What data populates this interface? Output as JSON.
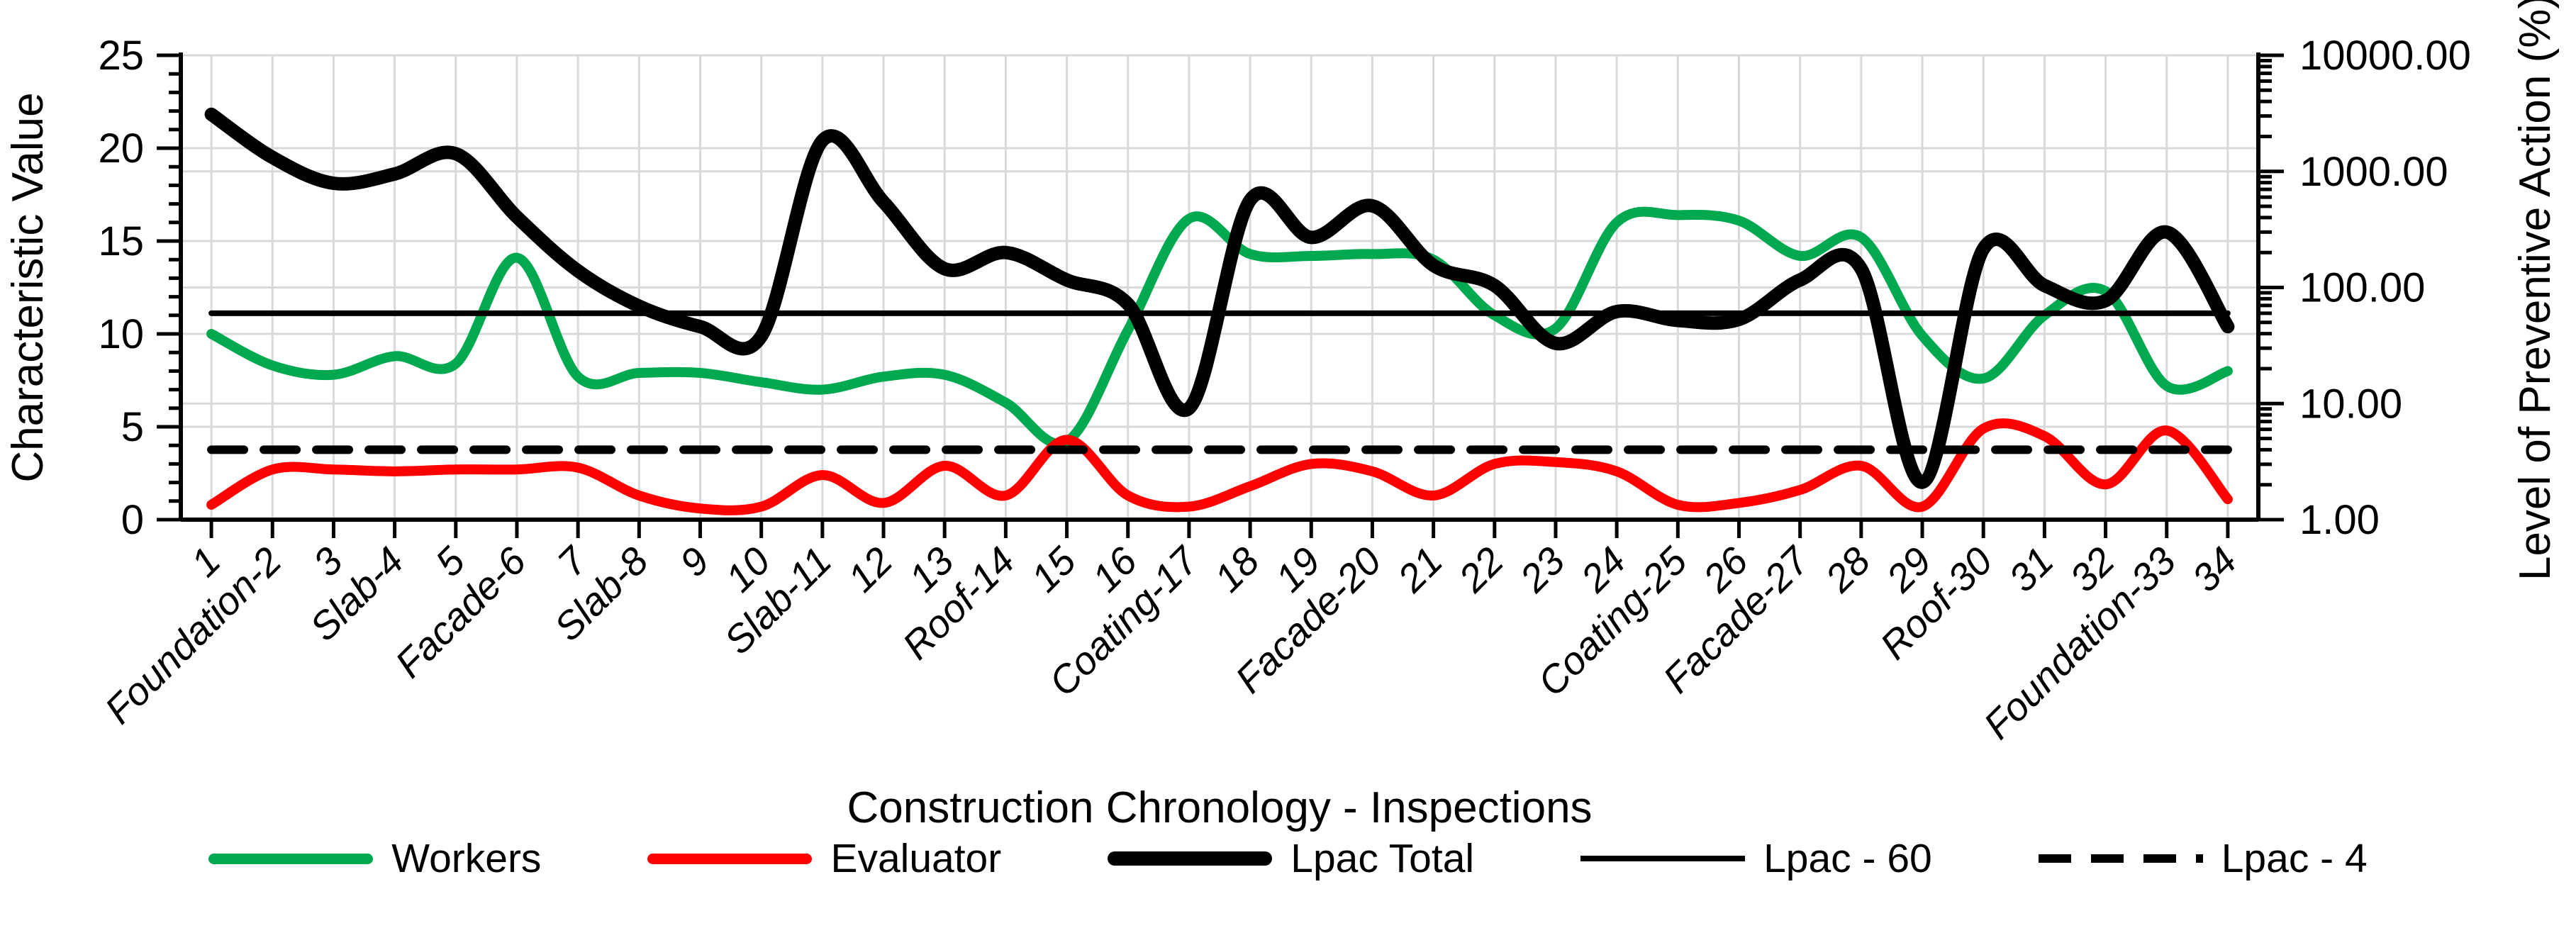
{
  "chart_data": {
    "type": "line",
    "title": "",
    "x_axis": {
      "title": "Construction Chronology - Inspections",
      "categories": [
        "1",
        "Foundation-2",
        "3",
        "Slab-4",
        "5",
        "Facade-6",
        "7",
        "Slab-8",
        "9",
        "10",
        "Slab-11",
        "12",
        "13",
        "Roof-14",
        "15",
        "16",
        "Coating-17",
        "18",
        "19",
        "Facade-20",
        "21",
        "22",
        "23",
        "24",
        "Coating-25",
        "26",
        "Facade-27",
        "28",
        "29",
        "Roof-30",
        "31",
        "32",
        "Foundation-33",
        "34"
      ],
      "gridlines": true
    },
    "y_left": {
      "title": "Characteristic Value",
      "min": 0,
      "max": 25,
      "major_step": 5,
      "minor_step": 1,
      "tick_labels": [
        "0",
        "5",
        "10",
        "15",
        "20",
        "25"
      ]
    },
    "y_right": {
      "title": "Level of Preventive Action (%)",
      "scale": "log",
      "min": 1,
      "max": 10000,
      "tick_labels": [
        "1.00",
        "10.00",
        "100.00",
        "1000.00",
        "10000.00"
      ]
    },
    "grid_color": "#D9D9D9",
    "legend_position": "bottom",
    "series": [
      {
        "name": "Workers",
        "axis": "left",
        "color": "#00A94F",
        "width": 14,
        "style": "solid",
        "values": [
          10,
          8.3,
          7.8,
          8.8,
          8.4,
          14.1,
          7.7,
          7.9,
          7.9,
          7.4,
          7,
          7.7,
          7.8,
          6.3,
          4.2,
          10.2,
          16.2,
          14.3,
          14.2,
          14.3,
          14,
          11,
          10.3,
          16,
          16.4,
          16.1,
          14.2,
          15.2,
          9.9,
          7.6,
          11,
          12.3,
          7.2,
          8
        ]
      },
      {
        "name": "Evaluator",
        "axis": "left",
        "color": "#FF0000",
        "width": 14,
        "style": "solid",
        "values": [
          0.8,
          2.7,
          2.7,
          2.6,
          2.7,
          2.7,
          2.8,
          1.3,
          0.6,
          0.7,
          2.4,
          0.9,
          2.9,
          1.3,
          4.3,
          1.3,
          0.7,
          1.8,
          3,
          2.6,
          1.3,
          3,
          3.1,
          2.6,
          0.8,
          0.9,
          1.6,
          2.9,
          0.7,
          4.9,
          4.5,
          1.9,
          4.8,
          1.1
        ]
      },
      {
        "name": "Lpac Total",
        "axis": "right",
        "color": "#000000",
        "width": 19,
        "style": "solid",
        "values": [
          3100,
          1320,
          790,
          950,
          1420,
          405,
          139,
          69,
          46,
          38,
          1840,
          545,
          145,
          200,
          116,
          72,
          9.1,
          565,
          270,
          505,
          155,
          104,
          33,
          62,
          52,
          53,
          116,
          145,
          2.1,
          215,
          104,
          77,
          300,
          46
        ]
      },
      {
        "name": "Lpac - 60",
        "axis": "right",
        "color": "#000000",
        "width": 8,
        "style": "solid",
        "constant": 60
      },
      {
        "name": "Lpac - 4",
        "axis": "right",
        "color": "#000000",
        "width": 12,
        "style": "dashed",
        "constant": 4
      }
    ]
  },
  "legend": {
    "items": [
      {
        "label": "Workers"
      },
      {
        "label": "Evaluator"
      },
      {
        "label": "Lpac Total"
      },
      {
        "label": "Lpac - 60"
      },
      {
        "label": "Lpac - 4"
      }
    ]
  }
}
